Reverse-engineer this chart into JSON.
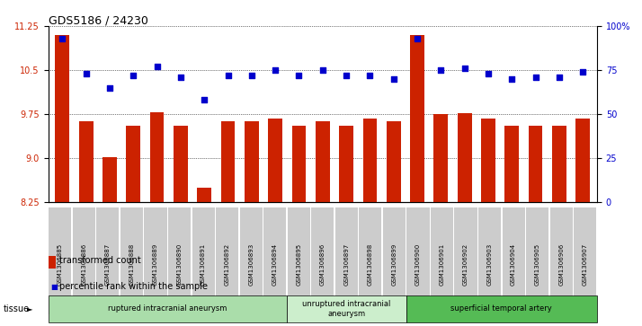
{
  "title": "GDS5186 / 24230",
  "samples": [
    "GSM1306885",
    "GSM1306886",
    "GSM1306887",
    "GSM1306888",
    "GSM1306889",
    "GSM1306890",
    "GSM1306891",
    "GSM1306892",
    "GSM1306893",
    "GSM1306894",
    "GSM1306895",
    "GSM1306896",
    "GSM1306897",
    "GSM1306898",
    "GSM1306899",
    "GSM1306900",
    "GSM1306901",
    "GSM1306902",
    "GSM1306903",
    "GSM1306904",
    "GSM1306905",
    "GSM1306906",
    "GSM1306907"
  ],
  "transformed_count": [
    11.1,
    9.63,
    9.01,
    9.55,
    9.78,
    9.55,
    8.5,
    9.63,
    9.63,
    9.68,
    9.55,
    9.63,
    9.55,
    9.68,
    9.63,
    11.1,
    9.75,
    9.76,
    9.68,
    9.55,
    9.55,
    9.55,
    9.68
  ],
  "percentile_rank": [
    93,
    73,
    65,
    72,
    77,
    71,
    58,
    72,
    72,
    75,
    72,
    75,
    72,
    72,
    70,
    93,
    75,
    76,
    73,
    70,
    71,
    71,
    74
  ],
  "ylim_left": [
    8.25,
    11.25
  ],
  "ylim_right": [
    0,
    100
  ],
  "yticks_left": [
    8.25,
    9.0,
    9.75,
    10.5,
    11.25
  ],
  "yticks_right": [
    0,
    25,
    50,
    75,
    100
  ],
  "bar_color": "#cc2200",
  "dot_color": "#0000cc",
  "bg_color": "#ffffff",
  "tissue_groups": [
    {
      "label": "ruptured intracranial aneurysm",
      "start": 0,
      "end": 10,
      "color": "#aaddaa"
    },
    {
      "label": "unruptured intracranial\naneurysm",
      "start": 10,
      "end": 15,
      "color": "#cceecc"
    },
    {
      "label": "superficial temporal artery",
      "start": 15,
      "end": 23,
      "color": "#55bb55"
    }
  ],
  "tick_label_color_left": "#cc2200",
  "tick_label_color_right": "#0000cc",
  "legend_bar_label": "transformed count",
  "legend_dot_label": "percentile rank within the sample"
}
